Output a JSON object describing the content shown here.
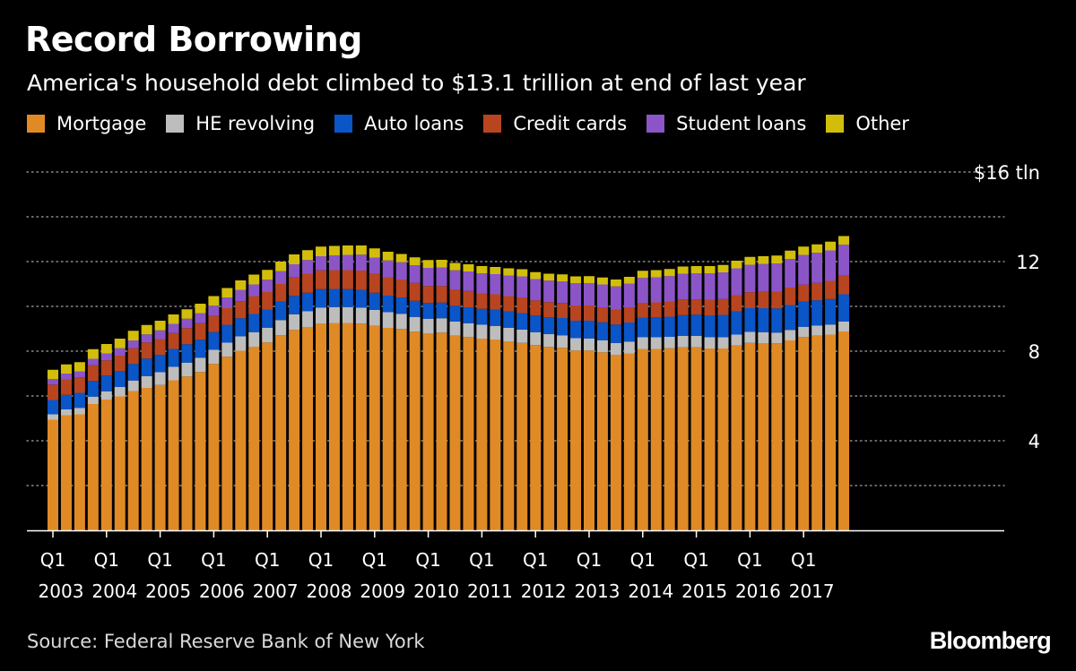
{
  "header": {
    "title": "Record Borrowing",
    "subtitle": "America's household debt climbed to $13.1 trillion at end of last year"
  },
  "footer": {
    "source": "Source: Federal Reserve Bank of New York",
    "brand": "Bloomberg"
  },
  "colors": {
    "background": "#000000",
    "mortgage": "#E08A26",
    "he_revolving": "#BDBDBD",
    "auto_loans": "#0A55C8",
    "credit_cards": "#B8451F",
    "student_loans": "#8B55C8",
    "other": "#D2BE0A",
    "grid": "#8a8a8a"
  },
  "chart_data": {
    "type": "bar",
    "stacked": true,
    "title": "Record Borrowing",
    "subtitle": "America's household debt climbed to $13.1 trillion at end of last year",
    "xlabel": "",
    "ylabel": "",
    "units": "$ tln",
    "ylim": [
      0,
      16
    ],
    "y_ticks": [
      4,
      8,
      12,
      16
    ],
    "y_tick_labels": [
      "4",
      "8",
      "12",
      "$16 tln"
    ],
    "grid": true,
    "legend_position": "top-left",
    "x_tick_labels": [
      {
        "quarter": "Q1",
        "year": "2003"
      },
      {
        "quarter": "Q1",
        "year": "2004"
      },
      {
        "quarter": "Q1",
        "year": "2005"
      },
      {
        "quarter": "Q1",
        "year": "2006"
      },
      {
        "quarter": "Q1",
        "year": "2007"
      },
      {
        "quarter": "Q1",
        "year": "2008"
      },
      {
        "quarter": "Q1",
        "year": "2009"
      },
      {
        "quarter": "Q1",
        "year": "2010"
      },
      {
        "quarter": "Q1",
        "year": "2011"
      },
      {
        "quarter": "Q1",
        "year": "2012"
      },
      {
        "quarter": "Q1",
        "year": "2013"
      },
      {
        "quarter": "Q1",
        "year": "2014"
      },
      {
        "quarter": "Q1",
        "year": "2015"
      },
      {
        "quarter": "Q1",
        "year": "2016"
      },
      {
        "quarter": "Q1",
        "year": "2017"
      }
    ],
    "categories": [
      "2003 Q1",
      "2003 Q2",
      "2003 Q3",
      "2003 Q4",
      "2004 Q1",
      "2004 Q2",
      "2004 Q3",
      "2004 Q4",
      "2005 Q1",
      "2005 Q2",
      "2005 Q3",
      "2005 Q4",
      "2006 Q1",
      "2006 Q2",
      "2006 Q3",
      "2006 Q4",
      "2007 Q1",
      "2007 Q2",
      "2007 Q3",
      "2007 Q4",
      "2008 Q1",
      "2008 Q2",
      "2008 Q3",
      "2008 Q4",
      "2009 Q1",
      "2009 Q2",
      "2009 Q3",
      "2009 Q4",
      "2010 Q1",
      "2010 Q2",
      "2010 Q3",
      "2010 Q4",
      "2011 Q1",
      "2011 Q2",
      "2011 Q3",
      "2011 Q4",
      "2012 Q1",
      "2012 Q2",
      "2012 Q3",
      "2012 Q4",
      "2013 Q1",
      "2013 Q2",
      "2013 Q3",
      "2013 Q4",
      "2014 Q1",
      "2014 Q2",
      "2014 Q3",
      "2014 Q4",
      "2015 Q1",
      "2015 Q2",
      "2015 Q3",
      "2015 Q4",
      "2016 Q1",
      "2016 Q2",
      "2016 Q3",
      "2016 Q4",
      "2017 Q1",
      "2017 Q2",
      "2017 Q3",
      "2017 Q4"
    ],
    "series": [
      {
        "name": "Mortgage",
        "key": "mortgage",
        "values": [
          4.94,
          5.14,
          5.18,
          5.64,
          5.84,
          5.98,
          6.22,
          6.36,
          6.49,
          6.7,
          6.87,
          7.07,
          7.43,
          7.75,
          8.02,
          8.2,
          8.39,
          8.71,
          8.95,
          9.08,
          9.24,
          9.26,
          9.26,
          9.23,
          9.13,
          9.04,
          8.99,
          8.87,
          8.8,
          8.83,
          8.69,
          8.63,
          8.56,
          8.52,
          8.44,
          8.37,
          8.27,
          8.19,
          8.15,
          8.03,
          8.03,
          7.95,
          7.84,
          7.9,
          8.1,
          8.1,
          8.13,
          8.17,
          8.17,
          8.12,
          8.12,
          8.25,
          8.37,
          8.36,
          8.35,
          8.48,
          8.63,
          8.69,
          8.74,
          8.88
        ]
      },
      {
        "name": "HE revolving",
        "key": "he_revolving",
        "values": [
          0.24,
          0.26,
          0.29,
          0.33,
          0.37,
          0.42,
          0.47,
          0.53,
          0.57,
          0.6,
          0.62,
          0.64,
          0.63,
          0.63,
          0.64,
          0.65,
          0.66,
          0.68,
          0.7,
          0.71,
          0.71,
          0.71,
          0.71,
          0.71,
          0.71,
          0.7,
          0.68,
          0.66,
          0.65,
          0.64,
          0.63,
          0.62,
          0.62,
          0.61,
          0.6,
          0.59,
          0.58,
          0.57,
          0.56,
          0.55,
          0.54,
          0.54,
          0.53,
          0.53,
          0.53,
          0.52,
          0.51,
          0.51,
          0.51,
          0.51,
          0.5,
          0.49,
          0.49,
          0.49,
          0.48,
          0.47,
          0.46,
          0.45,
          0.45,
          0.44
        ]
      },
      {
        "name": "Auto loans",
        "key": "auto_loans",
        "values": [
          0.64,
          0.65,
          0.67,
          0.7,
          0.7,
          0.71,
          0.74,
          0.78,
          0.78,
          0.8,
          0.82,
          0.8,
          0.79,
          0.8,
          0.81,
          0.81,
          0.81,
          0.82,
          0.82,
          0.82,
          0.82,
          0.81,
          0.8,
          0.79,
          0.77,
          0.74,
          0.73,
          0.72,
          0.7,
          0.7,
          0.71,
          0.71,
          0.71,
          0.72,
          0.73,
          0.74,
          0.74,
          0.75,
          0.77,
          0.78,
          0.79,
          0.8,
          0.82,
          0.85,
          0.87,
          0.89,
          0.9,
          0.93,
          0.95,
          0.97,
          1.0,
          1.03,
          1.06,
          1.07,
          1.08,
          1.11,
          1.12,
          1.13,
          1.14,
          1.22
        ]
      },
      {
        "name": "Credit cards",
        "key": "credit_cards",
        "values": [
          0.69,
          0.69,
          0.69,
          0.7,
          0.68,
          0.69,
          0.7,
          0.72,
          0.7,
          0.71,
          0.72,
          0.74,
          0.72,
          0.74,
          0.76,
          0.8,
          0.78,
          0.79,
          0.82,
          0.85,
          0.84,
          0.84,
          0.85,
          0.87,
          0.84,
          0.82,
          0.8,
          0.8,
          0.76,
          0.74,
          0.73,
          0.73,
          0.69,
          0.69,
          0.69,
          0.7,
          0.68,
          0.68,
          0.67,
          0.68,
          0.68,
          0.67,
          0.67,
          0.68,
          0.66,
          0.67,
          0.68,
          0.7,
          0.68,
          0.7,
          0.71,
          0.73,
          0.71,
          0.73,
          0.75,
          0.78,
          0.76,
          0.78,
          0.81,
          0.83
        ]
      },
      {
        "name": "Student loans",
        "key": "student_loans",
        "values": [
          0.24,
          0.26,
          0.27,
          0.29,
          0.31,
          0.33,
          0.35,
          0.36,
          0.39,
          0.41,
          0.42,
          0.44,
          0.46,
          0.48,
          0.5,
          0.52,
          0.55,
          0.57,
          0.59,
          0.61,
          0.63,
          0.66,
          0.68,
          0.71,
          0.73,
          0.75,
          0.77,
          0.79,
          0.81,
          0.83,
          0.85,
          0.87,
          0.89,
          0.9,
          0.92,
          0.94,
          0.95,
          0.96,
          0.97,
          0.99,
          1.0,
          1.02,
          1.03,
          1.05,
          1.11,
          1.12,
          1.13,
          1.14,
          1.16,
          1.17,
          1.19,
          1.2,
          1.23,
          1.24,
          1.25,
          1.28,
          1.33,
          1.34,
          1.36,
          1.38
        ]
      },
      {
        "name": "Other",
        "key": "other",
        "values": [
          0.42,
          0.41,
          0.41,
          0.43,
          0.42,
          0.43,
          0.43,
          0.42,
          0.43,
          0.42,
          0.42,
          0.43,
          0.43,
          0.42,
          0.43,
          0.44,
          0.44,
          0.43,
          0.44,
          0.44,
          0.43,
          0.42,
          0.42,
          0.41,
          0.41,
          0.39,
          0.37,
          0.35,
          0.35,
          0.34,
          0.33,
          0.32,
          0.33,
          0.32,
          0.32,
          0.32,
          0.31,
          0.31,
          0.31,
          0.31,
          0.31,
          0.31,
          0.31,
          0.31,
          0.32,
          0.32,
          0.32,
          0.33,
          0.33,
          0.33,
          0.33,
          0.34,
          0.35,
          0.35,
          0.36,
          0.37,
          0.37,
          0.38,
          0.39,
          0.39
        ]
      }
    ]
  }
}
